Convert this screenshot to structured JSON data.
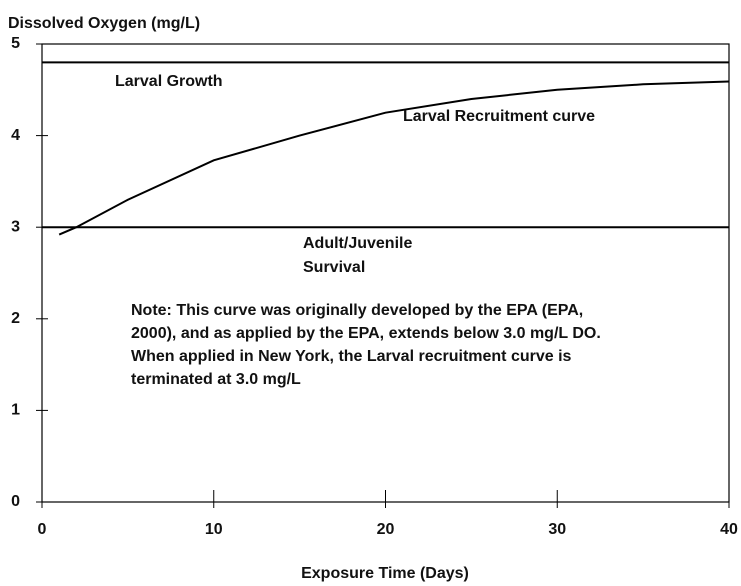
{
  "chart_data": {
    "type": "line",
    "title": "Dissolved Oxygen (mg/L)",
    "x_label": "Exposure Time (Days)",
    "xlim": [
      0,
      40
    ],
    "xticks": [
      0,
      10,
      20,
      30,
      40
    ],
    "ylim": [
      0,
      5
    ],
    "yticks": [
      0,
      1,
      2,
      3,
      4,
      5
    ],
    "series": [
      {
        "name": "Larval Recruitment curve",
        "color": "#000000",
        "x": [
          1,
          2,
          5,
          10,
          15,
          20,
          25,
          30,
          35,
          40
        ],
        "values": [
          2.92,
          3.0,
          3.3,
          3.73,
          4.0,
          4.25,
          4.4,
          4.5,
          4.56,
          4.59
        ]
      }
    ],
    "reference_lines": [
      {
        "label": [
          "Larval Growth"
        ],
        "value": 4.8
      },
      {
        "label": [
          "Adult/Juvenile",
          "Survival"
        ],
        "value": 3.0
      }
    ],
    "note": [
      "Note:  This curve was originally developed by the EPA (EPA,",
      "2000), and as applied by the EPA, extends below 3.0 mg/L DO.",
      "When applied in New York, the Larval recruitment curve  is",
      "terminated at 3.0 mg/L"
    ]
  }
}
